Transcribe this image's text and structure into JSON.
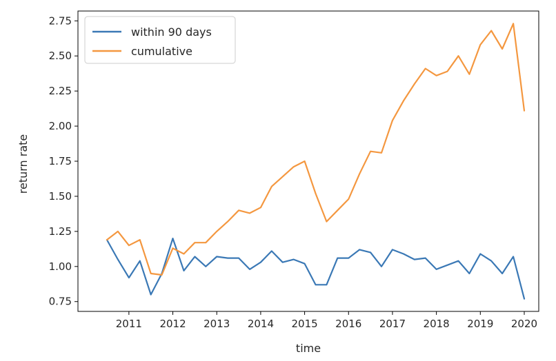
{
  "chart_data": {
    "type": "line",
    "title": "",
    "xlabel": "time",
    "ylabel": "return rate",
    "xlim": [
      2009.84,
      2020.33
    ],
    "ylim": [
      0.68,
      2.82
    ],
    "x_ticks": [
      2011,
      2012,
      2013,
      2014,
      2015,
      2016,
      2017,
      2018,
      2019,
      2020
    ],
    "x_tick_labels": [
      "2011",
      "2012",
      "2013",
      "2014",
      "2015",
      "2016",
      "2017",
      "2018",
      "2019",
      "2020"
    ],
    "y_ticks": [
      0.75,
      1.0,
      1.25,
      1.5,
      1.75,
      2.0,
      2.25,
      2.5,
      2.75
    ],
    "y_tick_labels": [
      "0.75",
      "1.00",
      "1.25",
      "1.50",
      "1.75",
      "2.00",
      "2.25",
      "2.50",
      "2.75"
    ],
    "grid": false,
    "legend_position": "top-left",
    "x": [
      2010.5,
      2010.75,
      2011.0,
      2011.25,
      2011.5,
      2011.75,
      2012.0,
      2012.25,
      2012.5,
      2012.75,
      2013.0,
      2013.25,
      2013.5,
      2013.75,
      2014.0,
      2014.25,
      2014.5,
      2014.75,
      2015.0,
      2015.25,
      2015.5,
      2015.75,
      2016.0,
      2016.25,
      2016.5,
      2016.75,
      2017.0,
      2017.25,
      2017.5,
      2017.75,
      2018.0,
      2018.25,
      2018.5,
      2018.75,
      2019.0,
      2019.25,
      2019.5,
      2019.75,
      2020.0
    ],
    "series": [
      {
        "name": "within 90 days",
        "color": "#3a78b5",
        "values": [
          1.19,
          1.05,
          0.92,
          1.04,
          0.8,
          0.95,
          1.2,
          0.97,
          1.07,
          1.0,
          1.07,
          1.06,
          1.06,
          0.98,
          1.03,
          1.11,
          1.03,
          1.05,
          1.02,
          0.87,
          0.87,
          1.06,
          1.06,
          1.12,
          1.1,
          1.0,
          1.12,
          1.09,
          1.05,
          1.06,
          0.98,
          1.01,
          1.04,
          0.95,
          1.09,
          1.04,
          0.95,
          1.07,
          0.77
        ]
      },
      {
        "name": "cumulative",
        "color": "#f4973f",
        "values": [
          1.19,
          1.25,
          1.15,
          1.19,
          0.95,
          0.94,
          1.13,
          1.09,
          1.17,
          1.17,
          1.25,
          1.32,
          1.4,
          1.38,
          1.42,
          1.57,
          1.64,
          1.71,
          1.75,
          1.52,
          1.32,
          1.4,
          1.48,
          1.66,
          1.82,
          1.81,
          2.04,
          2.18,
          2.3,
          2.41,
          2.36,
          2.39,
          2.5,
          2.37,
          2.58,
          2.68,
          2.55,
          2.73,
          2.11
        ]
      }
    ]
  }
}
